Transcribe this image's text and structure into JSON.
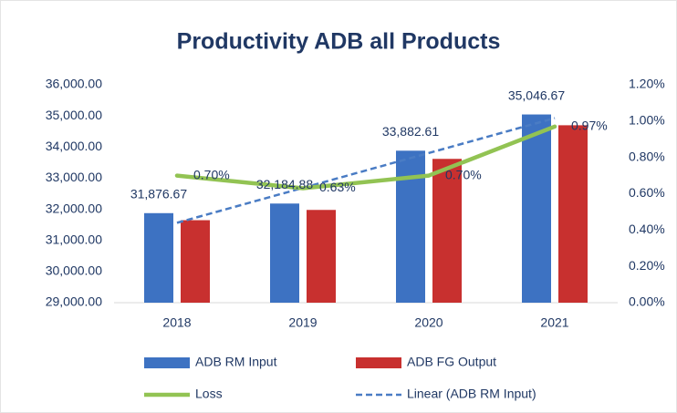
{
  "chart_data": {
    "type": "bar",
    "title": "Productivity ADB all Products",
    "categories": [
      "2018",
      "2019",
      "2020",
      "2021"
    ],
    "series": [
      {
        "name": "ADB RM Input",
        "color": "#3d72c2",
        "type": "bar",
        "values": [
          31876.67,
          32184.88,
          33882.61,
          35046.67
        ],
        "value_labels": [
          "31,876.67",
          "32,184.88",
          "33,882.61",
          "35,046.67"
        ]
      },
      {
        "name": "ADB FG Output",
        "color": "#c8302f",
        "type": "bar",
        "values": [
          31650,
          31980,
          33620,
          34700
        ]
      },
      {
        "name": "Loss",
        "color": "#92c353",
        "type": "line",
        "axis": "y2",
        "values": [
          0.7,
          0.63,
          0.7,
          0.97
        ],
        "value_labels": [
          "0.70%",
          "0.63%",
          "0.70%",
          "0.97%"
        ]
      }
    ],
    "trendline": {
      "name": "Linear (ADB RM Input)",
      "series": 0,
      "color": "#4a7cc4",
      "style": "dashed"
    },
    "ylim": [
      29000,
      36000
    ],
    "yticks": [
      {
        "value": 29000,
        "label": "29,000.00"
      },
      {
        "value": 30000,
        "label": "30,000.00"
      },
      {
        "value": 31000,
        "label": "31,000.00"
      },
      {
        "value": 32000,
        "label": "32,000.00"
      },
      {
        "value": 33000,
        "label": "33,000.00"
      },
      {
        "value": 34000,
        "label": "34,000.00"
      },
      {
        "value": 35000,
        "label": "35,000.00"
      },
      {
        "value": 36000,
        "label": "36,000.00"
      }
    ],
    "y2lim": [
      0,
      1.2
    ],
    "y2ticks": [
      {
        "value": 0,
        "label": "0.00%"
      },
      {
        "value": 0.2,
        "label": "0.20%"
      },
      {
        "value": 0.4,
        "label": "0.40%"
      },
      {
        "value": 0.6,
        "label": "0.60%"
      },
      {
        "value": 0.8,
        "label": "0.80%"
      },
      {
        "value": 1.0,
        "label": "1.00%"
      },
      {
        "value": 1.2,
        "label": "1.20%"
      }
    ],
    "grid": false
  }
}
